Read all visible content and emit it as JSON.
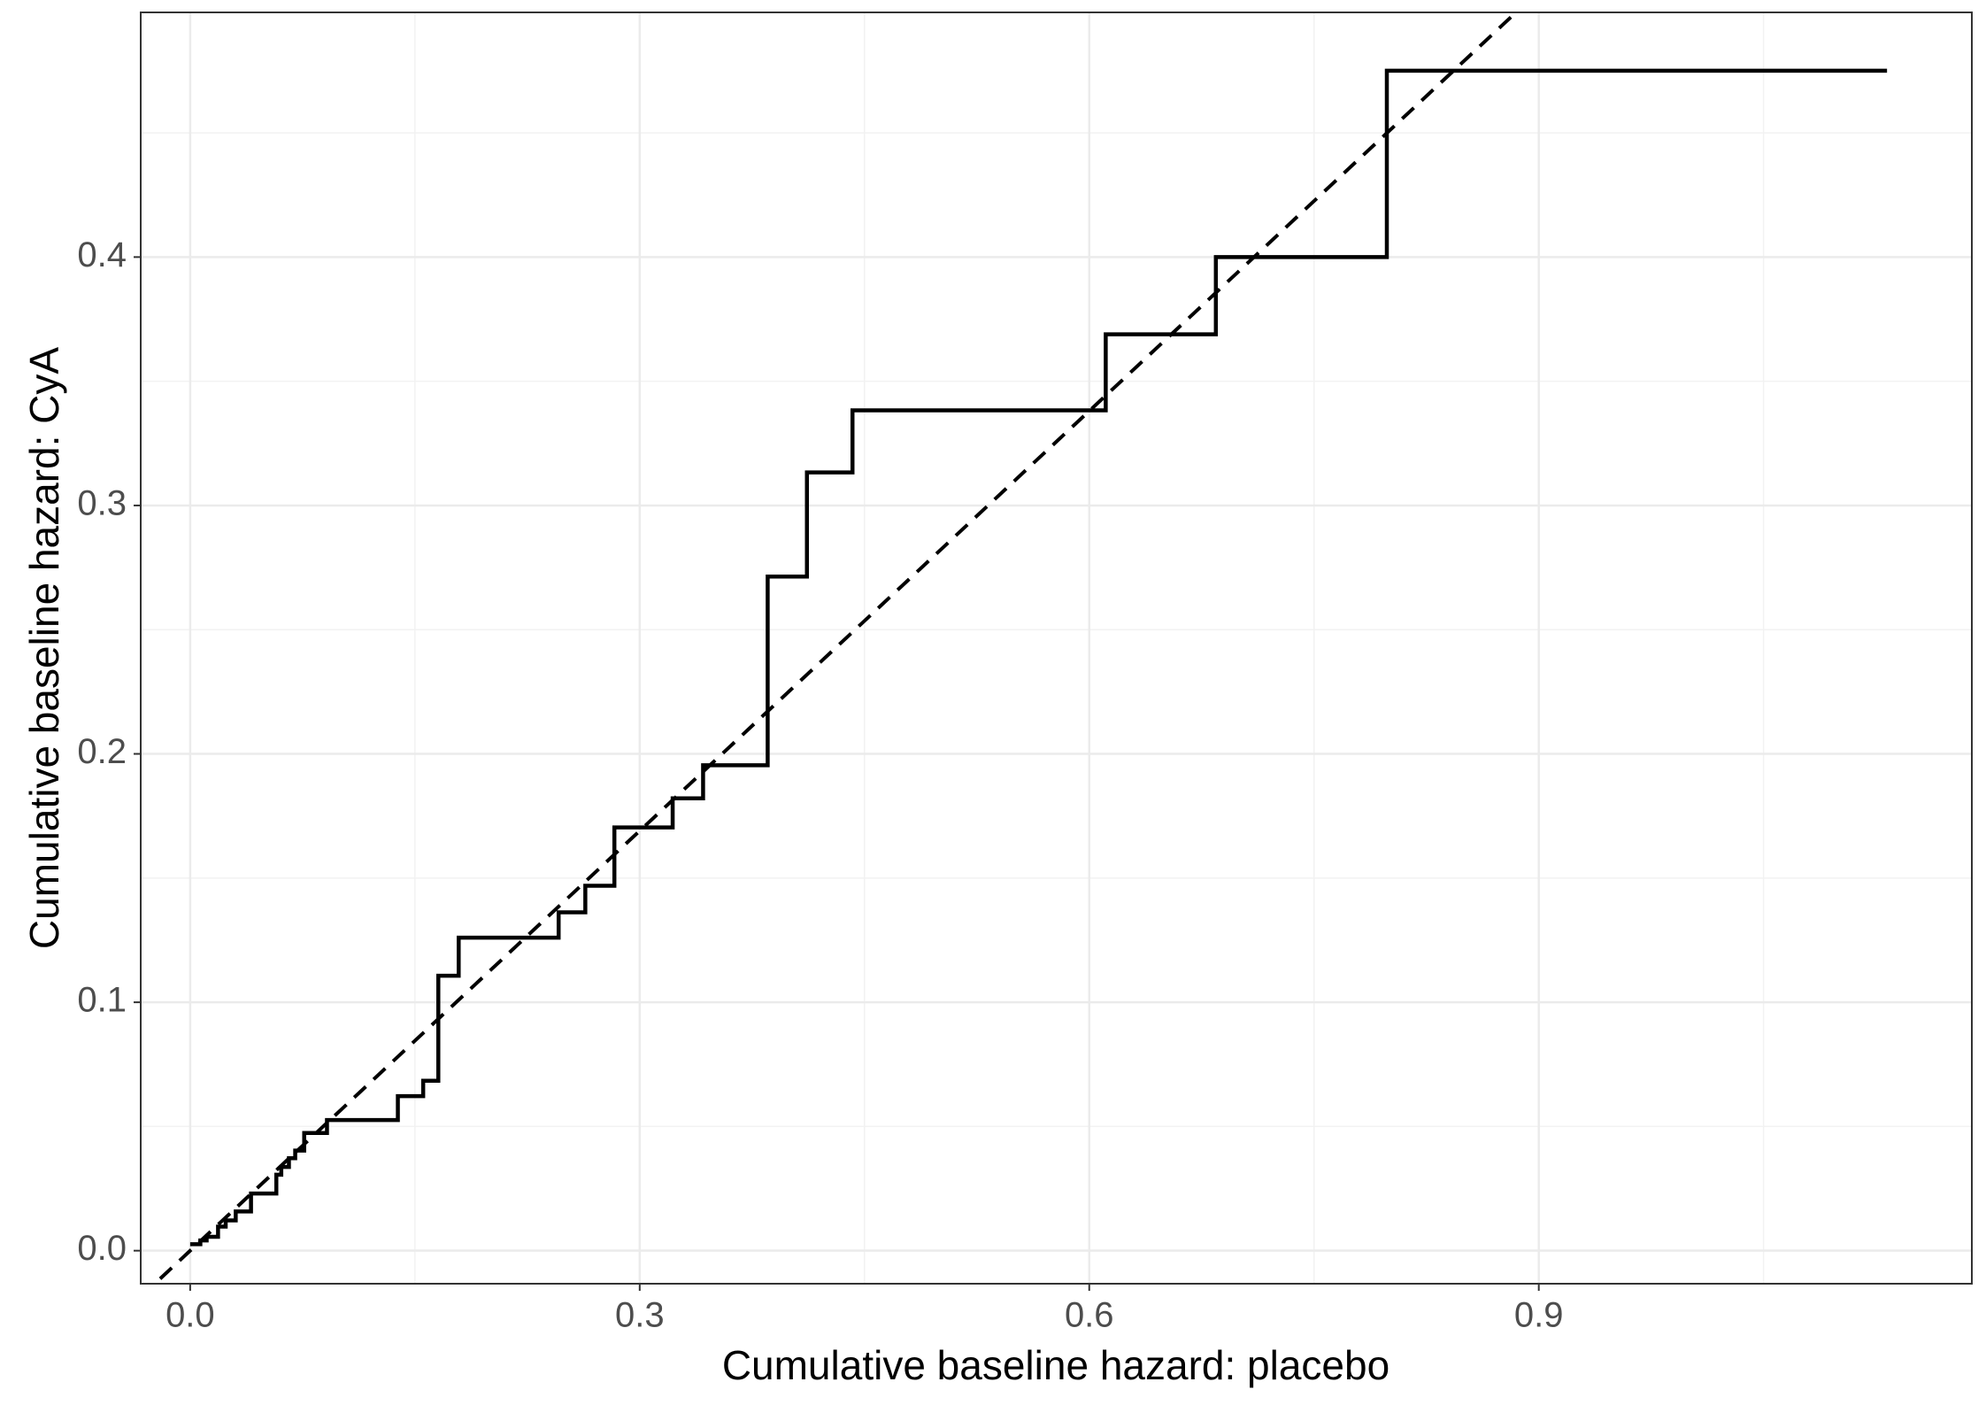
{
  "chart_data": {
    "type": "line",
    "step": "post",
    "x_label": "Cumulative baseline hazard: placebo",
    "y_label": "Cumulative baseline hazard: CyA",
    "x": [
      0,
      0.0068,
      0.011,
      0.0186,
      0.0237,
      0.0304,
      0.0406,
      0.0575,
      0.0608,
      0.0659,
      0.0701,
      0.0761,
      0.0913,
      0.1386,
      0.1555,
      0.1656,
      0.1792,
      0.2459,
      0.2637,
      0.2831,
      0.322,
      0.3423,
      0.3854,
      0.4116,
      0.442,
      0.611,
      0.6845,
      0.7986,
      1.1324
    ],
    "series": [
      {
        "color": "#000000",
        "values": [
          0.0026,
          0.0041,
          0.0056,
          0.0097,
          0.0122,
          0.0158,
          0.023,
          0.0306,
          0.0337,
          0.0372,
          0.0403,
          0.0474,
          0.0526,
          0.0622,
          0.0684,
          0.1107,
          0.126,
          0.1362,
          0.1469,
          0.1704,
          0.1821,
          0.1954,
          0.2714,
          0.3133,
          0.3383,
          0.3689,
          0.4,
          0.475,
          0.475
        ]
      }
    ],
    "reference_line": {
      "slope": 0.5634,
      "intercept": 0,
      "color": "#000000",
      "dashed": true
    },
    "xlim": [
      -0.033,
      1.189
    ],
    "ylim": [
      -0.0133,
      0.4985
    ],
    "xticks": [
      {
        "value": 0,
        "label": "0.0"
      },
      0.3,
      0.6,
      0.9
    ],
    "yticks": [
      {
        "value": 0,
        "label": "0.0"
      },
      0.1,
      0.2,
      0.3,
      0.4
    ],
    "grid": true,
    "minor_grid": true
  }
}
